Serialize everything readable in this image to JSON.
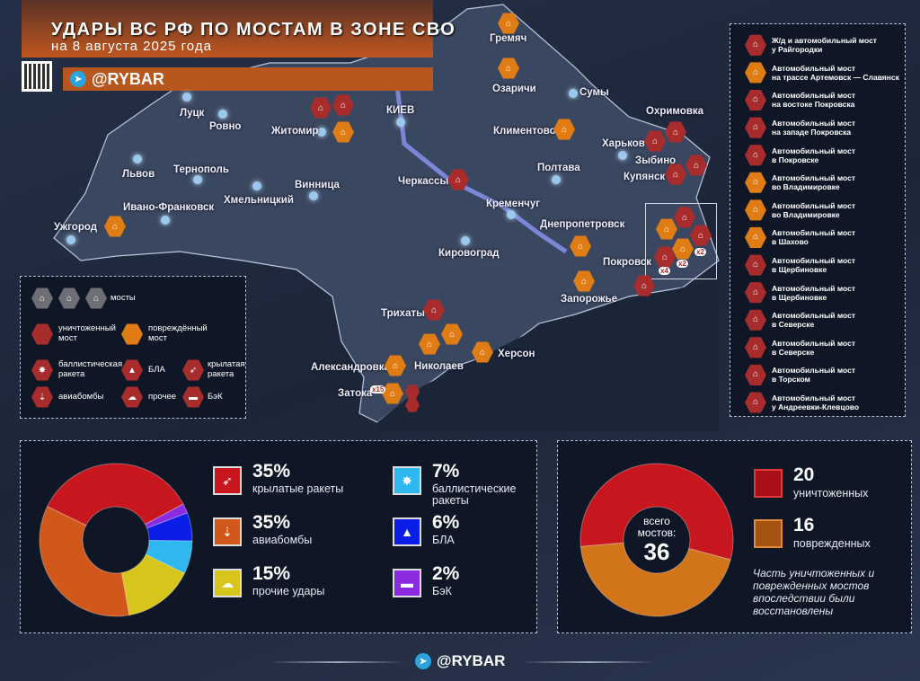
{
  "header": {
    "title": "УДАРЫ ВС РФ ПО МОСТАМ В ЗОНЕ СВО",
    "subtitle": "на 8 августа 2025 года",
    "brand": "@RYBAR"
  },
  "colors": {
    "destroyed": "#a82c2c",
    "damaged": "#e07c14",
    "accent": "#c0561f",
    "background": "#1c2433"
  },
  "map": {
    "cities": [
      "Луцк",
      "Ровно",
      "Житомир",
      "КИЕВ",
      "Львов",
      "Тернополь",
      "Хмельницкий",
      "Винница",
      "Ивано-Франковск",
      "Ужгород",
      "Сумы",
      "Харьков",
      "Полтава",
      "Кременчуг",
      "Кировоград",
      "Гремяч",
      "Озаричи",
      "Климентово",
      "Охримовка",
      "Зыбино",
      "Купянск",
      "Черкассы",
      "Днепропетровск",
      "Покровск",
      "Запорожье",
      "Трихаты",
      "Николаев",
      "Херсон",
      "Александровка",
      "Затока"
    ],
    "multipliers": [
      "x2",
      "x4",
      "x2",
      "x15"
    ]
  },
  "legend": {
    "bridges": "мосты",
    "destroyed": "уничтоженный мост",
    "damaged": "повреждённый мост",
    "ballistic": "баллистическая ракета",
    "uav": "БЛА",
    "cruise": "крылатая ракета",
    "bombs": "авиабомбы",
    "other": "прочее",
    "usv": "БэК"
  },
  "bridge_list": [
    {
      "title": "Ж/д и автомобильный мост",
      "place": "у Райгородки",
      "status": "destroyed"
    },
    {
      "title": "Автомобильный мост",
      "place": "на трассе Артемовск — Славянск",
      "status": "damaged"
    },
    {
      "title": "Автомобильный мост",
      "place": "на востоке Покровска",
      "status": "destroyed"
    },
    {
      "title": "Автомобильный мост",
      "place": "на западе Покровска",
      "status": "destroyed"
    },
    {
      "title": "Автомобильный мост",
      "place": "в Покровске",
      "status": "destroyed"
    },
    {
      "title": "Автомобильный мост",
      "place": "во Владимировке",
      "status": "damaged"
    },
    {
      "title": "Автомобильный мост",
      "place": "во Владимировке",
      "status": "damaged"
    },
    {
      "title": "Автомобильный мост",
      "place": "в Шахово",
      "status": "damaged"
    },
    {
      "title": "Автомобильный мост",
      "place": "в Щербиновке",
      "status": "destroyed"
    },
    {
      "title": "Автомобильный мост",
      "place": "в Щербиновке",
      "status": "destroyed"
    },
    {
      "title": "Автомобильный мост",
      "place": "в Северске",
      "status": "destroyed"
    },
    {
      "title": "Автомобильный мост",
      "place": "в Северске",
      "status": "destroyed"
    },
    {
      "title": "Автомобильный мост",
      "place": "в Торском",
      "status": "destroyed"
    },
    {
      "title": "Автомобильный мост",
      "place": "у Андреевки-Клевцово",
      "status": "destroyed"
    }
  ],
  "chart_data": [
    {
      "type": "pie",
      "donut": true,
      "series": [
        {
          "name": "крылатые ракеты",
          "label": "35%",
          "value": 35,
          "color": "#c8161e",
          "icon": "cruise-missile-icon"
        },
        {
          "name": "БэК",
          "label": "2%",
          "value": 2,
          "color": "#8a2be2",
          "icon": "usv-boat-icon"
        },
        {
          "name": "БЛА",
          "label": "6%",
          "value": 6,
          "color": "#0a1ee8",
          "icon": "uav-icon"
        },
        {
          "name": "баллистические ракеты",
          "label": "7%",
          "value": 7,
          "color": "#2fb8f0",
          "icon": "ballistic-missile-icon"
        },
        {
          "name": "прочие удары",
          "label": "15%",
          "value": 15,
          "color": "#d8c51c",
          "icon": "explosion-icon"
        },
        {
          "name": "авиабомбы",
          "label": "35%",
          "value": 35,
          "color": "#d2571a",
          "icon": "aerial-bombs-icon"
        }
      ]
    },
    {
      "type": "pie",
      "donut": true,
      "center_label": "всего мостов:",
      "total": "36",
      "series": [
        {
          "name": "уничтоженных",
          "label": "20",
          "value": 20,
          "color": "#c8161e"
        },
        {
          "name": "поврежденных",
          "label": "16",
          "value": 16,
          "color": "#d2741a"
        }
      ],
      "note": "Часть уничтоженных и поврежденных мостов впоследствии были восстановлены"
    }
  ]
}
